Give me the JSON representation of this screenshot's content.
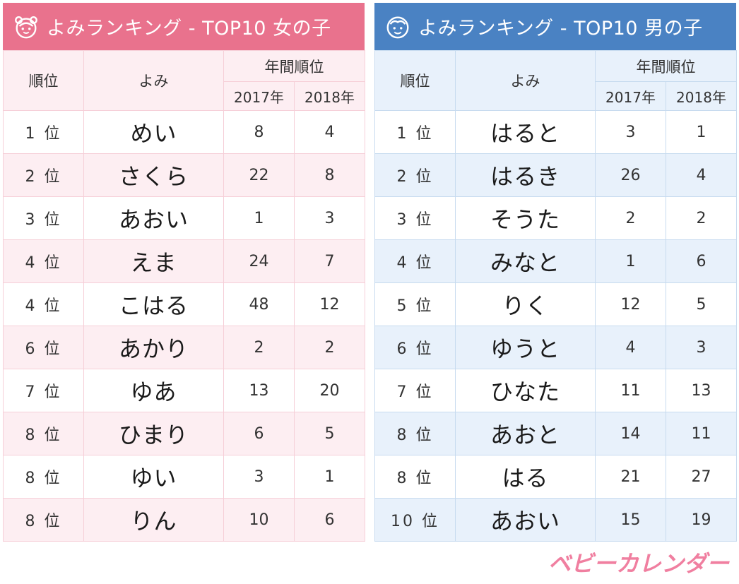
{
  "girls": {
    "title": "よみランキング - TOP10 女の子",
    "icon": "girl-face-icon",
    "color": "#e9728d",
    "headers": {
      "rank": "順位",
      "yomi": "よみ",
      "annual": "年間順位",
      "year1": "2017年",
      "year2": "2018年"
    },
    "rows": [
      {
        "rank": "1 位",
        "yomi": "めい",
        "y2017": "8",
        "y2018": "4"
      },
      {
        "rank": "2 位",
        "yomi": "さくら",
        "y2017": "22",
        "y2018": "8"
      },
      {
        "rank": "3 位",
        "yomi": "あおい",
        "y2017": "1",
        "y2018": "3"
      },
      {
        "rank": "4 位",
        "yomi": "えま",
        "y2017": "24",
        "y2018": "7"
      },
      {
        "rank": "4 位",
        "yomi": "こはる",
        "y2017": "48",
        "y2018": "12"
      },
      {
        "rank": "6 位",
        "yomi": "あかり",
        "y2017": "2",
        "y2018": "2"
      },
      {
        "rank": "7 位",
        "yomi": "ゆあ",
        "y2017": "13",
        "y2018": "20"
      },
      {
        "rank": "8 位",
        "yomi": "ひまり",
        "y2017": "6",
        "y2018": "5"
      },
      {
        "rank": "8 位",
        "yomi": "ゆい",
        "y2017": "3",
        "y2018": "1"
      },
      {
        "rank": "8 位",
        "yomi": "りん",
        "y2017": "10",
        "y2018": "6"
      }
    ]
  },
  "boys": {
    "title": "よみランキング - TOP10 男の子",
    "icon": "boy-face-icon",
    "color": "#4a82c3",
    "headers": {
      "rank": "順位",
      "yomi": "よみ",
      "annual": "年間順位",
      "year1": "2017年",
      "year2": "2018年"
    },
    "rows": [
      {
        "rank": "1 位",
        "yomi": "はると",
        "y2017": "3",
        "y2018": "1"
      },
      {
        "rank": "2 位",
        "yomi": "はるき",
        "y2017": "26",
        "y2018": "4"
      },
      {
        "rank": "3 位",
        "yomi": "そうた",
        "y2017": "2",
        "y2018": "2"
      },
      {
        "rank": "4 位",
        "yomi": "みなと",
        "y2017": "1",
        "y2018": "6"
      },
      {
        "rank": "5 位",
        "yomi": "りく",
        "y2017": "12",
        "y2018": "5"
      },
      {
        "rank": "6 位",
        "yomi": "ゆうと",
        "y2017": "4",
        "y2018": "3"
      },
      {
        "rank": "7 位",
        "yomi": "ひなた",
        "y2017": "11",
        "y2018": "13"
      },
      {
        "rank": "8 位",
        "yomi": "あおと",
        "y2017": "14",
        "y2018": "11"
      },
      {
        "rank": "8 位",
        "yomi": "はる",
        "y2017": "21",
        "y2018": "27"
      },
      {
        "rank": "10 位",
        "yomi": "あおい",
        "y2017": "15",
        "y2018": "19"
      }
    ]
  },
  "logo": {
    "text": "ベビーカレンダー",
    "color": "#f07fa0"
  }
}
